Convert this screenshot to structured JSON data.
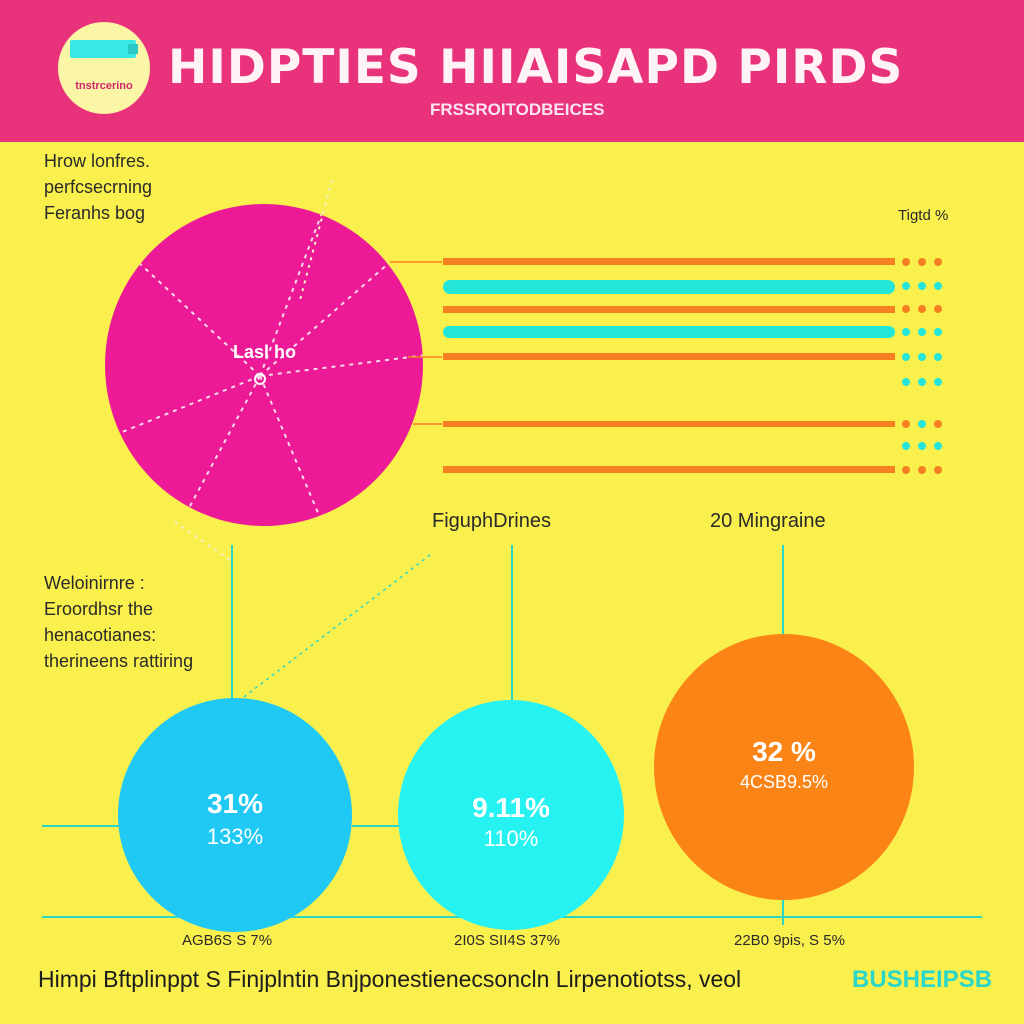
{
  "header": {
    "logo_text": "tnstrcerino",
    "title": "HIDPTIES HIIAISAPD PIRDS",
    "subtitle": "FRSSROITODBEICES"
  },
  "left_top_text": [
    "Hrow lonfres.",
    "perfcsecrning",
    "Feranhs bog"
  ],
  "big_circle": {
    "center_label": "Lasl ho"
  },
  "bars_label": "Tigtd %",
  "left_mid_text": [
    "Weloinirnre :",
    "Eroordhsr the",
    "henacotianes:",
    "therineens rattiring"
  ],
  "captions": {
    "middle": "FiguphDrines",
    "right": "20 Mingraine"
  },
  "stats": [
    {
      "primary": "31%",
      "secondary": "133%",
      "label": "AGB6S S 7%",
      "color": "#1fc9f4"
    },
    {
      "primary": "9.11%",
      "secondary": "110%",
      "label": "2I0S SII4S 37%",
      "color": "#27f2f2"
    },
    {
      "primary": "32 %",
      "secondary": "4CSB9.5%",
      "label": "22B0 9pis, S 5%",
      "color": "#fb8417"
    }
  ],
  "footer": {
    "text": "Himpi Bftplinppt S Finjplntin Bnjponestienecsoncln Lirpenotiotss, veol",
    "badge": "BUSHEIPSB"
  },
  "colors": {
    "background": "#f9f04e",
    "header": "#e8337c",
    "magenta": "#ec1a97",
    "orange_line": "#f77f1f",
    "cyan_line": "#23e5d8"
  }
}
